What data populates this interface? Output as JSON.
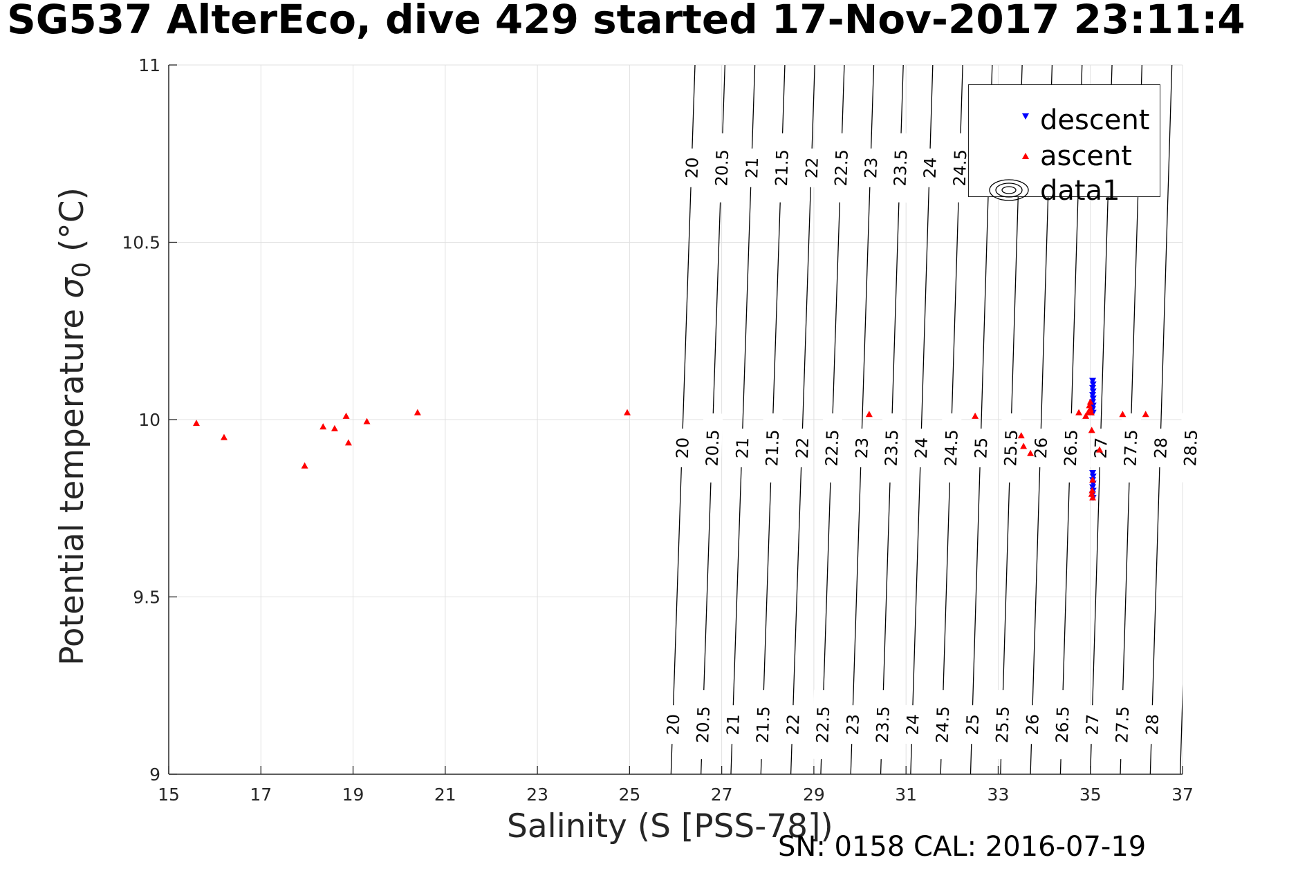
{
  "title": "SG537 AlterEco, dive 429 started 17-Nov-2017 23:11:4",
  "footer": "SN: 0158  CAL: 2016-07-19",
  "colors": {
    "descent": "#0000ff",
    "ascent": "#ff0000",
    "contour": "#000000",
    "grid": "#e0e0e0",
    "axis": "#262626"
  },
  "chart_data": {
    "type": "scatter",
    "xlabel": "Salinity (S [PSS-78])",
    "ylabel": {
      "main": "Potential temperature ",
      "sym": "σ",
      "sub": "0",
      "unit": " (°C)"
    },
    "xlim": [
      15,
      37
    ],
    "ylim": [
      9,
      11
    ],
    "xticks": [
      15,
      17,
      19,
      21,
      23,
      25,
      27,
      29,
      31,
      33,
      35,
      37
    ],
    "yticks": [
      9,
      9.5,
      10,
      10.5,
      11
    ],
    "ytick_labels": [
      "9",
      "9.5",
      "10",
      "10.5",
      "11"
    ],
    "grid": true,
    "legend": {
      "location": "top-right",
      "entries": [
        "descent",
        "ascent",
        "data1"
      ]
    },
    "series": [
      {
        "name": "descent",
        "marker": "triangle-down",
        "color": "#0000ff",
        "points": [
          [
            35.05,
            10.11
          ],
          [
            35.06,
            10.1
          ],
          [
            35.05,
            10.09
          ],
          [
            35.06,
            10.08
          ],
          [
            35.05,
            10.07
          ],
          [
            35.06,
            10.06
          ],
          [
            35.05,
            10.05
          ],
          [
            35.06,
            10.04
          ],
          [
            35.05,
            10.03
          ],
          [
            35.06,
            10.02
          ],
          [
            35.05,
            9.85
          ],
          [
            35.06,
            9.84
          ],
          [
            35.05,
            9.83
          ],
          [
            35.06,
            9.82
          ],
          [
            35.05,
            9.81
          ],
          [
            35.06,
            9.8
          ],
          [
            35.05,
            9.79
          ],
          [
            35.06,
            9.78
          ]
        ]
      },
      {
        "name": "ascent",
        "marker": "triangle-up",
        "color": "#ff0000",
        "points": [
          [
            15.6,
            9.99
          ],
          [
            16.2,
            9.95
          ],
          [
            17.95,
            9.87
          ],
          [
            18.35,
            9.98
          ],
          [
            18.6,
            9.975
          ],
          [
            18.85,
            10.01
          ],
          [
            18.9,
            9.935
          ],
          [
            19.3,
            9.995
          ],
          [
            20.4,
            10.02
          ],
          [
            24.95,
            10.02
          ],
          [
            30.2,
            10.015
          ],
          [
            32.5,
            10.01
          ],
          [
            33.5,
            9.955
          ],
          [
            33.55,
            9.925
          ],
          [
            33.7,
            9.905
          ],
          [
            34.75,
            10.02
          ],
          [
            34.9,
            10.01
          ],
          [
            34.95,
            10.02
          ],
          [
            34.98,
            10.04
          ],
          [
            35.0,
            10.05
          ],
          [
            35.0,
            10.03
          ],
          [
            35.02,
            10.02
          ],
          [
            35.03,
            9.97
          ],
          [
            35.05,
            9.83
          ],
          [
            35.04,
            9.8
          ],
          [
            35.03,
            9.79
          ],
          [
            35.05,
            9.78
          ],
          [
            35.2,
            9.915
          ],
          [
            35.7,
            10.015
          ],
          [
            36.2,
            10.015
          ]
        ]
      }
    ],
    "contours": {
      "name": "data1",
      "levels": [
        20,
        20.5,
        21,
        21.5,
        22,
        22.5,
        23,
        23.5,
        24,
        24.5,
        25,
        25.5,
        26,
        26.5,
        27,
        27.5,
        28,
        28.5
      ],
      "level_labels": [
        "20",
        "20.5",
        "21",
        "21.5",
        "22",
        "22.5",
        "23",
        "23.5",
        "24",
        "24.5",
        "25",
        "25.5",
        "26",
        "26.5",
        "27",
        "27.5",
        "28",
        "28.5"
      ],
      "crossings": [
        [
          25.9,
          26.42
        ],
        [
          26.55,
          27.07
        ],
        [
          27.2,
          27.72
        ],
        [
          27.85,
          28.37
        ],
        [
          28.5,
          29.02
        ],
        [
          29.15,
          29.66
        ],
        [
          29.8,
          30.3
        ],
        [
          30.45,
          30.94
        ],
        [
          31.1,
          31.58
        ],
        [
          31.75,
          32.23
        ],
        [
          32.4,
          32.87
        ],
        [
          33.05,
          33.52
        ],
        [
          33.7,
          34.17
        ],
        [
          34.35,
          34.82
        ],
        [
          35.0,
          35.47
        ],
        [
          35.65,
          36.12
        ],
        [
          36.3,
          36.77
        ],
        [
          36.95,
          37.42
        ]
      ],
      "label_rows": [
        {
          "t": 10.71,
          "levels": [
            "20",
            "20.5",
            "21",
            "21.5",
            "22",
            "22.5",
            "23",
            "23.5",
            "24",
            "24.5"
          ]
        },
        {
          "t": 9.92,
          "levels": [
            "20",
            "20.5",
            "21",
            "21.5",
            "22",
            "22.5",
            "23",
            "23.5",
            "24",
            "24.5",
            "25",
            "25.5",
            "26",
            "26.5",
            "27",
            "27.5",
            "28",
            "28.5"
          ]
        },
        {
          "t": 9.14,
          "levels": [
            "20",
            "20.5",
            "21",
            "21.5",
            "22",
            "22.5",
            "23",
            "23.5",
            "24",
            "24.5",
            "25",
            "25.5",
            "26",
            "26.5",
            "27",
            "27.5",
            "28"
          ]
        }
      ]
    }
  }
}
